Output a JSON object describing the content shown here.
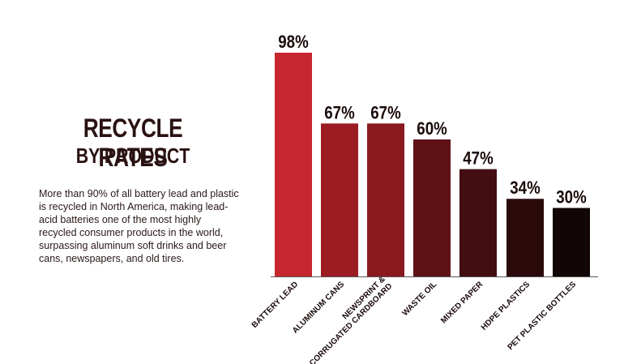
{
  "title": {
    "line1": "RECYCLE RATES",
    "line2": "BY PRODUCT"
  },
  "description": "More than 90% of all battery lead and plastic is recycled in North America, making lead-acid batteries one of the most highly recycled consumer products in the world, surpassing aluminum soft drinks and beer cans, newspapers, and old tires.",
  "chart_data": {
    "type": "bar",
    "title": "RECYCLE RATES BY PRODUCT",
    "categories": [
      [
        "BATTERY LEAD"
      ],
      [
        "ALUMINUM CANS"
      ],
      [
        "NEWSPRINT &",
        "CORRUGATED CARDBOARD"
      ],
      [
        "WASTE OIL"
      ],
      [
        "MIXED PAPER"
      ],
      [
        "HDPE PLASTICS"
      ],
      [
        "PET PLASTIC BOTTLES"
      ]
    ],
    "values": [
      98,
      67,
      67,
      60,
      47,
      34,
      30
    ],
    "value_labels": [
      "98%",
      "67%",
      "67%",
      "60%",
      "47%",
      "34%",
      "30%"
    ],
    "colors": [
      "#c6262e",
      "#9c1c24",
      "#8a1a20",
      "#5e1216",
      "#430e11",
      "#2a0a0b",
      "#120607"
    ],
    "ylim": [
      0,
      100
    ],
    "grid": false,
    "legend": "none"
  }
}
